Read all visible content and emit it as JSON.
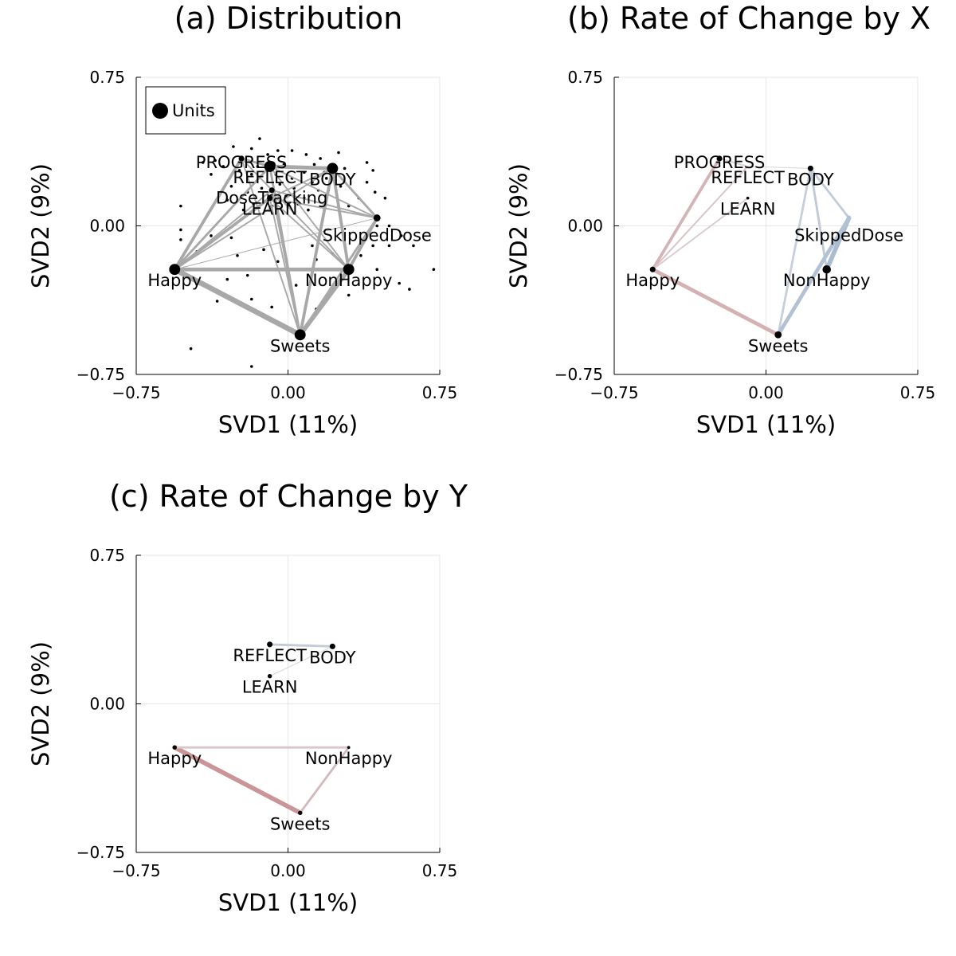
{
  "chart_data": [
    {
      "panel": "a",
      "type": "scatter",
      "title": "(a) Distribution",
      "xlabel": "SVD1 (11%)",
      "ylabel": "SVD2 (9%)",
      "xlim": [
        -0.75,
        0.75
      ],
      "ylim": [
        -0.75,
        0.75
      ],
      "xticks": [
        "−0.75",
        "0.00",
        "0.75"
      ],
      "yticks": [
        "−0.75",
        "0.00",
        "0.75"
      ],
      "grid": true,
      "legend": {
        "position": "top-left",
        "entries": [
          "Units"
        ]
      },
      "edge_color": "#a8a8a8",
      "nodes": [
        {
          "name": "PROGRESS",
          "x": -0.23,
          "y": 0.34,
          "size": 3
        },
        {
          "name": "REFLECT",
          "x": -0.09,
          "y": 0.3,
          "size": 7
        },
        {
          "name": "BODY",
          "x": 0.22,
          "y": 0.29,
          "size": 7
        },
        {
          "name": "DoseTracking",
          "x": -0.08,
          "y": 0.18,
          "size": 3
        },
        {
          "name": "LEARN",
          "x": -0.09,
          "y": 0.14,
          "size": 3
        },
        {
          "name": "SkippedDose",
          "x": 0.44,
          "y": 0.04,
          "size": 4
        },
        {
          "name": "Happy",
          "x": -0.56,
          "y": -0.22,
          "size": 7
        },
        {
          "name": "NonHappy",
          "x": 0.3,
          "y": -0.22,
          "size": 7
        },
        {
          "name": "Sweets",
          "x": 0.06,
          "y": -0.55,
          "size": 7
        }
      ],
      "edges": [
        {
          "from": "Happy",
          "to": "Sweets",
          "weight": 7
        },
        {
          "from": "Sweets",
          "to": "NonHappy",
          "weight": 6
        },
        {
          "from": "Happy",
          "to": "NonHappy",
          "weight": 5
        },
        {
          "from": "NonHappy",
          "to": "SkippedDose",
          "weight": 4
        },
        {
          "from": "BODY",
          "to": "NonHappy",
          "weight": 4
        },
        {
          "from": "Happy",
          "to": "PROGRESS",
          "weight": 4
        },
        {
          "from": "Happy",
          "to": "REFLECT",
          "weight": 3
        },
        {
          "from": "Happy",
          "to": "LEARN",
          "weight": 4
        },
        {
          "from": "Happy",
          "to": "DoseTracking",
          "weight": 2
        },
        {
          "from": "REFLECT",
          "to": "BODY",
          "weight": 5
        },
        {
          "from": "PROGRESS",
          "to": "REFLECT",
          "weight": 3
        },
        {
          "from": "REFLECT",
          "to": "Sweets",
          "weight": 3
        },
        {
          "from": "BODY",
          "to": "Sweets",
          "weight": 4
        },
        {
          "from": "LEARN",
          "to": "Sweets",
          "weight": 2
        },
        {
          "from": "DoseTracking",
          "to": "Sweets",
          "weight": 2
        },
        {
          "from": "BODY",
          "to": "SkippedDose",
          "weight": 3
        },
        {
          "from": "SkippedDose",
          "to": "Sweets",
          "weight": 3
        },
        {
          "from": "REFLECT",
          "to": "NonHappy",
          "weight": 2
        },
        {
          "from": "PROGRESS",
          "to": "NonHappy",
          "weight": 2
        },
        {
          "from": "LEARN",
          "to": "NonHappy",
          "weight": 2
        },
        {
          "from": "LEARN",
          "to": "SkippedDose",
          "weight": 2
        },
        {
          "from": "DoseTracking",
          "to": "SkippedDose",
          "weight": 2
        },
        {
          "from": "Happy",
          "to": "SkippedDose",
          "weight": 1
        },
        {
          "from": "Happy",
          "to": "BODY",
          "weight": 2
        },
        {
          "from": "PROGRESS",
          "to": "Sweets",
          "weight": 2
        },
        {
          "from": "BODY",
          "to": "LEARN",
          "weight": 2
        },
        {
          "from": "REFLECT",
          "to": "SkippedDose",
          "weight": 2
        }
      ],
      "units": [
        [
          -0.27,
          0.4
        ],
        [
          -0.18,
          0.39
        ],
        [
          -0.14,
          0.44
        ],
        [
          -0.1,
          0.36
        ],
        [
          -0.05,
          0.38
        ],
        [
          0.02,
          0.38
        ],
        [
          -0.02,
          0.31
        ],
        [
          0.09,
          0.36
        ],
        [
          0.13,
          0.31
        ],
        [
          0.16,
          0.34
        ],
        [
          0.19,
          0.24
        ],
        [
          0.25,
          0.37
        ],
        [
          0.28,
          0.29
        ],
        [
          0.39,
          0.32
        ],
        [
          0.42,
          0.28
        ],
        [
          -0.36,
          0.33
        ],
        [
          -0.42,
          0.32
        ],
        [
          -0.38,
          0.26
        ],
        [
          -0.24,
          0.28
        ],
        [
          -0.18,
          0.26
        ],
        [
          -0.15,
          0.3
        ],
        [
          -0.06,
          0.26
        ],
        [
          0.02,
          0.24
        ],
        [
          0.08,
          0.27
        ],
        [
          0.12,
          0.22
        ],
        [
          0.15,
          0.18
        ],
        [
          0.2,
          0.18
        ],
        [
          0.26,
          0.2
        ],
        [
          0.35,
          0.14
        ],
        [
          0.39,
          0.22
        ],
        [
          0.43,
          0.17
        ],
        [
          0.48,
          0.14
        ],
        [
          -0.2,
          0.17
        ],
        [
          -0.13,
          0.19
        ],
        [
          -0.04,
          0.21
        ],
        [
          0.03,
          0.19
        ],
        [
          0.08,
          0.14
        ],
        [
          -0.28,
          0.2
        ],
        [
          -0.3,
          0.13
        ],
        [
          -0.22,
          0.08
        ],
        [
          -0.17,
          0.11
        ],
        [
          0.0,
          0.1
        ],
        [
          0.05,
          0.11
        ],
        [
          0.1,
          0.08
        ],
        [
          -0.08,
          0.1
        ],
        [
          -0.53,
          0.1
        ],
        [
          -0.53,
          -0.02
        ],
        [
          -0.53,
          -0.07
        ],
        [
          -0.28,
          -0.06
        ],
        [
          -0.38,
          -0.05
        ],
        [
          -0.45,
          -0.13
        ],
        [
          -0.25,
          -0.15
        ],
        [
          -0.12,
          -0.12
        ],
        [
          -0.05,
          -0.18
        ],
        [
          0.12,
          -0.1
        ],
        [
          0.14,
          -0.17
        ],
        [
          0.17,
          -0.22
        ],
        [
          0.22,
          -0.14
        ],
        [
          0.3,
          -0.22
        ],
        [
          0.36,
          -0.15
        ],
        [
          0.42,
          -0.1
        ],
        [
          0.44,
          -0.22
        ],
        [
          0.44,
          0.0
        ],
        [
          0.5,
          0.0
        ],
        [
          0.5,
          -0.1
        ],
        [
          0.56,
          -0.05
        ],
        [
          0.62,
          -0.1
        ],
        [
          0.72,
          -0.22
        ],
        [
          0.55,
          -0.29
        ],
        [
          0.6,
          -0.32
        ],
        [
          0.3,
          -0.35
        ],
        [
          -0.3,
          -0.27
        ],
        [
          -0.35,
          -0.38
        ],
        [
          -0.18,
          -0.37
        ],
        [
          -0.08,
          -0.41
        ],
        [
          0.14,
          -0.42
        ],
        [
          -0.48,
          -0.62
        ],
        [
          -0.18,
          -0.71
        ],
        [
          -0.2,
          -0.25
        ],
        [
          0.04,
          -0.3
        ],
        [
          -0.1,
          0.13
        ],
        [
          0.18,
          0.27
        ],
        [
          -0.32,
          0.3
        ],
        [
          0.3,
          0.1
        ],
        [
          -0.01,
          0.15
        ]
      ]
    },
    {
      "panel": "b",
      "type": "scatter",
      "title": "(b) Rate of Change by X",
      "xlabel": "SVD1 (11%)",
      "ylabel": "SVD2 (9%)",
      "xlim": [
        -0.75,
        0.75
      ],
      "ylim": [
        -0.75,
        0.75
      ],
      "xticks": [
        "−0.75",
        "0.00",
        "0.75"
      ],
      "yticks": [
        "−0.75",
        "0.00",
        "0.75"
      ],
      "grid": true,
      "nodes": [
        {
          "name": "PROGRESS",
          "x": -0.23,
          "y": 0.34
        },
        {
          "name": "REFLECT",
          "x": -0.09,
          "y": 0.3
        },
        {
          "name": "BODY",
          "x": 0.22,
          "y": 0.29
        },
        {
          "name": "LEARN",
          "x": -0.09,
          "y": 0.14
        },
        {
          "name": "SkippedDose",
          "x": 0.41,
          "y": 0.04
        },
        {
          "name": "Happy",
          "x": -0.56,
          "y": -0.22
        },
        {
          "name": "NonHappy",
          "x": 0.3,
          "y": -0.22
        },
        {
          "name": "Sweets",
          "x": 0.06,
          "y": -0.55
        }
      ],
      "node_sizes": [
        3,
        0,
        3,
        1,
        0,
        3,
        5,
        4
      ],
      "edges": [
        {
          "from": "Happy",
          "to": "Sweets",
          "weight": 5,
          "color": "#d4b1b3"
        },
        {
          "from": "Happy",
          "to": "PROGRESS",
          "weight": 4,
          "color": "#d3b4b6"
        },
        {
          "from": "Happy",
          "to": "REFLECT",
          "weight": 2,
          "color": "#d7c4c6"
        },
        {
          "from": "Happy",
          "to": "LEARN",
          "weight": 2,
          "color": "#dacbcd"
        },
        {
          "from": "PROGRESS",
          "to": "REFLECT",
          "weight": 2,
          "color": "#dad2d4"
        },
        {
          "from": "BODY",
          "to": "Sweets",
          "weight": 3,
          "color": "#c6cfdb"
        },
        {
          "from": "BODY",
          "to": "SkippedDose",
          "weight": 3,
          "color": "#c2ccd9"
        },
        {
          "from": "BODY",
          "to": "NonHappy",
          "weight": 3,
          "color": "#bfcad8"
        },
        {
          "from": "SkippedDose",
          "to": "NonHappy",
          "weight": 6,
          "color": "#aabdd0"
        },
        {
          "from": "SkippedDose",
          "to": "Sweets",
          "weight": 5,
          "color": "#b2c2d4"
        },
        {
          "from": "REFLECT",
          "to": "BODY",
          "weight": 1,
          "color": "#d2d8e0"
        }
      ]
    },
    {
      "panel": "c",
      "type": "scatter",
      "title": "(c) Rate of Change by Y",
      "xlabel": "SVD1 (11%)",
      "ylabel": "SVD2 (9%)",
      "xlim": [
        -0.75,
        0.75
      ],
      "ylim": [
        -0.75,
        0.75
      ],
      "xticks": [
        "−0.75",
        "0.00",
        "0.75"
      ],
      "yticks": [
        "−0.75",
        "0.00",
        "0.75"
      ],
      "grid": true,
      "nodes": [
        {
          "name": "REFLECT",
          "x": -0.09,
          "y": 0.3
        },
        {
          "name": "BODY",
          "x": 0.22,
          "y": 0.29
        },
        {
          "name": "LEARN",
          "x": -0.09,
          "y": 0.14
        },
        {
          "name": "Happy",
          "x": -0.56,
          "y": -0.22
        },
        {
          "name": "NonHappy",
          "x": 0.3,
          "y": -0.22
        },
        {
          "name": "Sweets",
          "x": 0.06,
          "y": -0.55
        }
      ],
      "node_sizes": [
        3,
        3,
        2,
        2,
        1,
        2
      ],
      "edges": [
        {
          "from": "Happy",
          "to": "Sweets",
          "weight": 6,
          "color": "#c99597"
        },
        {
          "from": "Happy",
          "to": "NonHappy",
          "weight": 3,
          "color": "#d9c7ca"
        },
        {
          "from": "NonHappy",
          "to": "Sweets",
          "weight": 3,
          "color": "#d3b8bc"
        },
        {
          "from": "REFLECT",
          "to": "BODY",
          "weight": 3,
          "color": "#c3cbd6"
        },
        {
          "from": "LEARN",
          "to": "BODY",
          "weight": 1,
          "color": "#cfd3d9"
        }
      ]
    }
  ]
}
